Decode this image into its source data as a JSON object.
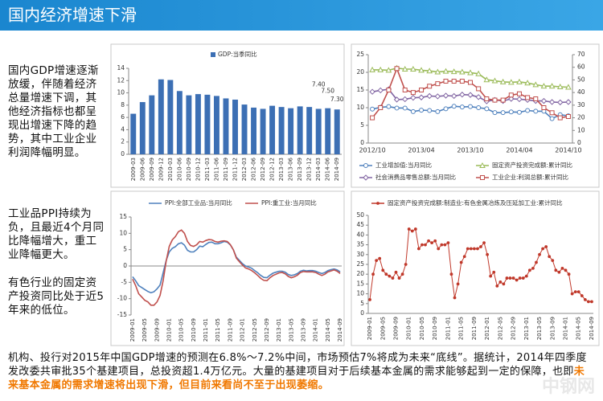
{
  "header": {
    "title": "国内经济增速下滑"
  },
  "text": {
    "para1": "国内GDP增速逐渐放缓，伴随着经济总量增速下调，其他经济指标也都呈现出增速下降的趋势，其中工业企业利润降幅明显。",
    "para2": "工业品PPI持续为负，且最近4个月同比降幅增大，重工业降幅更大。",
    "para3": "有色行业的固定资产投资同比处于近5年来的低位。",
    "bottom": "机构、投行对2015年中国GDP增速的预测在6.8%～7.2%中间，市场预估7%将成为未来“底线”。据统计，2014年四季度发改委共审批35个基建项目，总投资超1.4万亿元。大量的基建项目对于后续基本金属的需求能够起到一定的保障，也即",
    "bottom_highlight": "未来基本金属的需求增速将出现下滑，但目前来看尚不至于出现萎缩。",
    "watermark": "中钢网"
  },
  "chart_data": [
    {
      "type": "bar",
      "categories": [
        "2009-03",
        "2009-06",
        "2009-09",
        "2009-12",
        "2010-03",
        "2010-06",
        "2010-09",
        "2010-12",
        "2011-03",
        "2011-06",
        "2011-09",
        "2011-12",
        "2012-03",
        "2012-06",
        "2012-09",
        "2012-12",
        "2013-03",
        "2013-06",
        "2013-09",
        "2013-12",
        "2014-03",
        "2014-06",
        "2014-09"
      ],
      "series": [
        {
          "name": "GDP:当季同比",
          "color": "#3c6fb4",
          "values": [
            6.6,
            8.5,
            9.6,
            12.2,
            12.1,
            10.3,
            9.6,
            9.8,
            9.7,
            9.5,
            9.1,
            8.9,
            8.1,
            7.6,
            7.4,
            7.9,
            7.7,
            7.5,
            7.8,
            7.7,
            7.4,
            7.5,
            7.3
          ],
          "value_labels": [
            null,
            null,
            null,
            null,
            null,
            null,
            null,
            null,
            null,
            null,
            null,
            null,
            null,
            null,
            null,
            null,
            null,
            null,
            null,
            null,
            "7.40",
            "7.50",
            "7.30"
          ]
        }
      ],
      "ylim": [
        0,
        14
      ],
      "yticks": [
        0,
        2,
        4,
        6,
        8,
        10,
        12,
        14
      ]
    },
    {
      "type": "line",
      "categories": [
        "2012/10",
        null,
        null,
        null,
        null,
        null,
        "2013/04",
        null,
        null,
        null,
        null,
        null,
        "2013/10",
        null,
        null,
        null,
        null,
        null,
        "2014/04",
        null,
        null,
        null,
        null,
        null,
        "2014/10"
      ],
      "series": [
        {
          "name": "工业增加值:当月同比",
          "color": "#4f81bd",
          "marker": "circle",
          "values": [
            9.6,
            10.1,
            10.3,
            9.9,
            9.9,
            8.9,
            9.3,
            9.2,
            8.9,
            9.7,
            10.4,
            10.2,
            10.3,
            10.0,
            9.7,
            8.6,
            8.6,
            8.8,
            8.7,
            9.2,
            9.0,
            9.0,
            6.9,
            8.0,
            7.7
          ]
        },
        {
          "name": "固定资产投资完成额:累计同比",
          "color": "#9bbb59",
          "marker": "triangle",
          "values": [
            20.7,
            20.7,
            20.6,
            21.2,
            20.9,
            20.9,
            20.6,
            20.4,
            20.1,
            20.3,
            20.2,
            20.1,
            19.9,
            19.6,
            17.9,
            17.6,
            17.3,
            17.2,
            17.3,
            17.0,
            16.5,
            16.1,
            16.1,
            15.9,
            15.8
          ]
        },
        {
          "name": "社会消费品零售总额:当月同比",
          "color": "#8064a2",
          "marker": "diamond",
          "values": [
            14.5,
            14.9,
            15.2,
            12.3,
            12.4,
            12.8,
            12.9,
            13.3,
            13.2,
            13.4,
            13.3,
            13.7,
            13.6,
            13.0,
            11.8,
            12.2,
            11.9,
            12.5,
            12.4,
            12.2,
            11.9,
            11.9,
            11.6,
            11.5,
            11.6
          ]
        },
        {
          "name": "工业企业:利润总额:累计同比",
          "color": "#c0504d",
          "marker": "square",
          "axis": "y2",
          "values": [
            20,
            28,
            42,
            59,
            42,
            40,
            42,
            45,
            47,
            49,
            49,
            49,
            48,
            43,
            35,
            34,
            34,
            38,
            39,
            36,
            35,
            28,
            24,
            20,
            21
          ]
        }
      ],
      "ylim": [
        0,
        25
      ],
      "yticks": [
        0,
        5,
        10,
        15,
        20,
        25
      ],
      "y2lim": [
        0,
        70
      ],
      "y2ticks": [
        0,
        10,
        20,
        30,
        40,
        50,
        60,
        70
      ]
    },
    {
      "type": "line",
      "categories": [
        "2009-01",
        null,
        null,
        null,
        "2009-05",
        null,
        null,
        null,
        "2009-09",
        null,
        null,
        null,
        "2010-01",
        null,
        null,
        null,
        "2010-05",
        null,
        null,
        null,
        "2010-09",
        null,
        null,
        null,
        "2011-01",
        null,
        null,
        null,
        "2011-05",
        null,
        null,
        null,
        "2011-09",
        null,
        null,
        null,
        "2012-01",
        null,
        null,
        null,
        "2012-05",
        null,
        null,
        null,
        "2012-09",
        null,
        null,
        null,
        "2013-01",
        null,
        null,
        null,
        "2013-05",
        null,
        null,
        null,
        "2013-09",
        null,
        null,
        null,
        "2014-01",
        null,
        null,
        null,
        "2014-05",
        null,
        null,
        null,
        "2014-09"
      ],
      "series": [
        {
          "name": "PPI:全部工业品:当月同比",
          "color": "#4f81bd",
          "values": [
            -3.3,
            -4.5,
            -6.0,
            -6.6,
            -7.2,
            -7.8,
            -8.2,
            -7.9,
            -7.0,
            -5.8,
            -2.1,
            1.7,
            4.3,
            5.4,
            5.9,
            6.8,
            7.1,
            6.4,
            4.8,
            4.3,
            4.3,
            5.0,
            6.1,
            5.9,
            6.6,
            7.2,
            7.3,
            6.8,
            6.8,
            7.1,
            7.5,
            7.3,
            6.5,
            5.0,
            2.7,
            1.7,
            0.7,
            0.0,
            -0.3,
            -0.7,
            -1.4,
            -2.1,
            -2.9,
            -3.5,
            -3.6,
            -2.8,
            -2.2,
            -1.9,
            -1.6,
            -1.6,
            -1.9,
            -2.6,
            -2.9,
            -2.7,
            -2.3,
            -1.6,
            -1.3,
            -1.5,
            -1.4,
            -1.4,
            -1.6,
            -2.0,
            -2.3,
            -2.0,
            -1.4,
            -1.1,
            -0.9,
            -1.2,
            -1.8
          ]
        },
        {
          "name": "PPI:重工业:当月同比",
          "color": "#c0504d",
          "values": [
            -4,
            -6,
            -8.5,
            -9.5,
            -10.5,
            -11,
            -12,
            -12,
            -11,
            -9,
            -4.5,
            1.5,
            6,
            8,
            9,
            10.5,
            11,
            10,
            7.5,
            6.3,
            6,
            6.5,
            7.5,
            7.3,
            7.8,
            8.1,
            8,
            7.5,
            7.3,
            7.6,
            7.7,
            7.5,
            6.6,
            5,
            2.4,
            1.3,
            0.3,
            -0.6,
            -0.9,
            -1.4,
            -2.1,
            -2.9,
            -3.8,
            -4.4,
            -4.5,
            -3.6,
            -2.9,
            -2.5,
            -2.1,
            -2.0,
            -2.4,
            -3.2,
            -3.6,
            -3.3,
            -2.8,
            -2.0,
            -1.7,
            -1.8,
            -1.8,
            -1.8,
            -2.0,
            -2.5,
            -2.9,
            -2.5,
            -1.8,
            -1.5,
            -1.2,
            -1.6,
            -2.3
          ]
        }
      ],
      "ylim": [
        -15,
        15
      ],
      "yticks": [
        -15,
        -10,
        -5,
        0,
        5,
        10,
        15
      ]
    },
    {
      "type": "line",
      "categories": [
        "2009-01",
        null,
        null,
        null,
        "2009-05",
        null,
        null,
        null,
        "2009-09",
        null,
        null,
        null,
        "2010-01",
        null,
        null,
        null,
        "2010-05",
        null,
        null,
        null,
        "2010-09",
        null,
        null,
        null,
        "2011-01",
        null,
        null,
        null,
        "2011-05",
        null,
        null,
        null,
        "2011-09",
        null,
        null,
        null,
        "2012-01",
        null,
        null,
        null,
        "2012-05",
        null,
        null,
        null,
        "2012-09",
        null,
        null,
        null,
        "2013-01",
        null,
        null,
        null,
        "2013-05",
        null,
        null,
        null,
        "2013-09",
        null,
        null,
        null,
        "2014-01",
        null,
        null,
        null,
        "2014-05",
        null,
        null,
        null,
        "2014-09"
      ],
      "series": [
        {
          "name": "固定资产投资完成额:制造业:有色金属冶炼及压延加工业:累计同比",
          "color": "#c0392b",
          "marker": "dot",
          "values": [
            7,
            20,
            27,
            28,
            22,
            20,
            19,
            18,
            21,
            18,
            20,
            25,
            43,
            42,
            43,
            33,
            35,
            35,
            37,
            36,
            37,
            33,
            35,
            35,
            36,
            20,
            8,
            15,
            26,
            29,
            33,
            33,
            33,
            33,
            34,
            36,
            30,
            19,
            21,
            14,
            16,
            15,
            18,
            18,
            18,
            17,
            18,
            18,
            19,
            22,
            23,
            26,
            30,
            33,
            34,
            29,
            27,
            22,
            21,
            23,
            22,
            20,
            10,
            11,
            11,
            9,
            7,
            6,
            6
          ]
        }
      ],
      "ylim": [
        0,
        50
      ],
      "yticks": [
        0,
        5,
        10,
        15,
        20,
        25,
        30,
        35,
        40,
        45,
        50
      ]
    }
  ]
}
